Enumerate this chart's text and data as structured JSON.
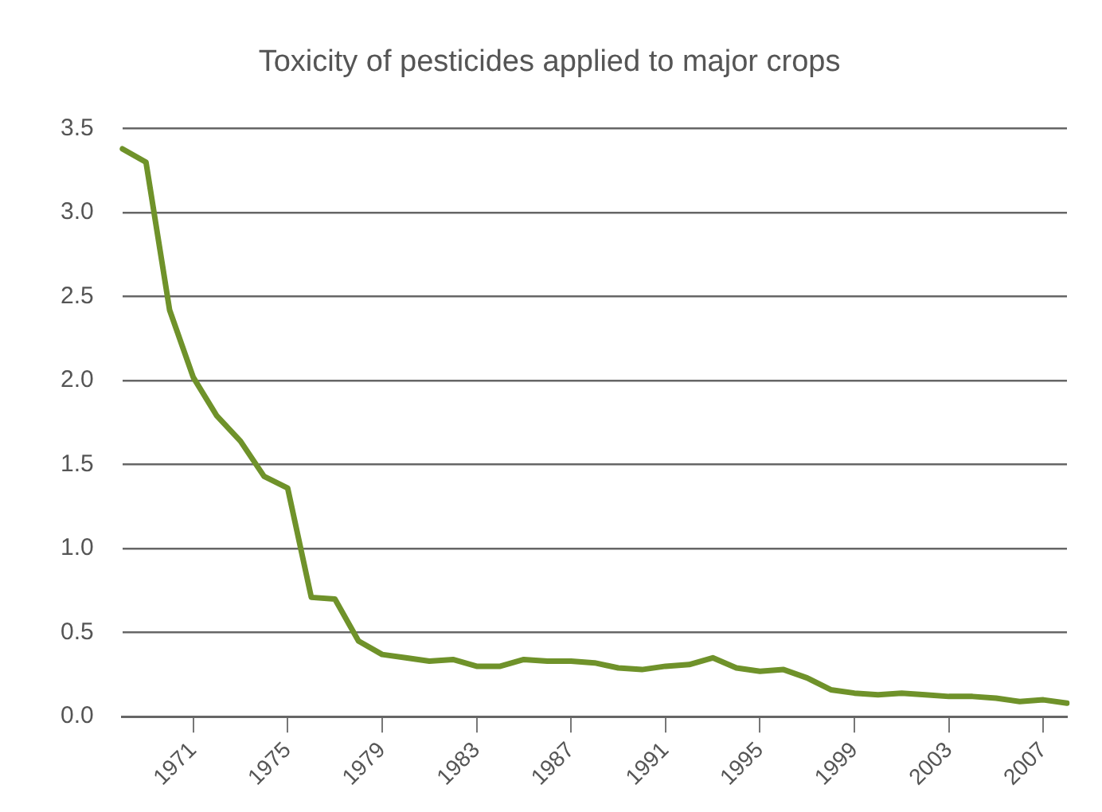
{
  "chart_data": {
    "type": "line",
    "title": "Toxicity of pesticides applied to major crops",
    "categories": [
      null,
      null,
      null,
      "1971",
      null,
      null,
      null,
      "1975",
      null,
      null,
      null,
      "1979",
      null,
      null,
      null,
      "1983",
      null,
      null,
      null,
      "1987",
      null,
      null,
      null,
      "1991",
      null,
      null,
      null,
      "1995",
      null,
      null,
      null,
      "1999",
      null,
      null,
      null,
      "2003",
      null,
      null,
      null,
      "2007",
      null
    ],
    "series": [
      {
        "color": "#6f922a",
        "values": [
          3.38,
          3.3,
          2.42,
          2.02,
          1.79,
          1.64,
          1.43,
          1.36,
          0.71,
          0.7,
          0.45,
          0.37,
          0.35,
          0.33,
          0.34,
          0.3,
          0.3,
          0.34,
          0.33,
          0.33,
          0.32,
          0.29,
          0.28,
          0.3,
          0.31,
          0.35,
          0.29,
          0.27,
          0.28,
          0.23,
          0.16,
          0.14,
          0.13,
          0.14,
          0.13,
          0.12,
          0.12,
          0.11,
          0.09,
          0.1,
          0.08
        ]
      }
    ],
    "ylim": [
      0,
      3.5
    ],
    "yticks": [
      {
        "value": 0,
        "label": "0.0"
      },
      {
        "value": 0.5,
        "label": "0.5"
      },
      {
        "value": 1,
        "label": "1.0"
      },
      {
        "value": 1.5,
        "label": "1.5"
      },
      {
        "value": 2,
        "label": "2.0"
      },
      {
        "value": 2.5,
        "label": "2.5"
      },
      {
        "value": 3,
        "label": "3.0"
      },
      {
        "value": 3.5,
        "label": "3.5"
      }
    ],
    "grid": "y",
    "legend": false,
    "marker": "none",
    "line_style": "solid"
  }
}
